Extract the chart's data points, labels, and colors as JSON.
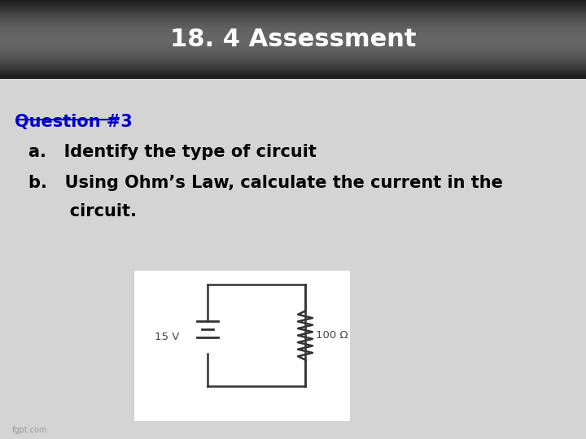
{
  "title": "18. 4 Assessment",
  "title_color": "#ffffff",
  "body_bg": "#d4d4d4",
  "question_label": "Question #3",
  "question_color": "#0000cc",
  "item_a": "a.   Identify the type of circuit",
  "item_b1": "b.   Using Ohm’s Law, calculate the current in the",
  "item_b2": "       circuit.",
  "item_color": "#000000",
  "font_size_title": 22,
  "font_size_body": 15,
  "circuit_voltage": "15 V",
  "circuit_resistance": "100 Ω",
  "watermark": "fgpt.com"
}
